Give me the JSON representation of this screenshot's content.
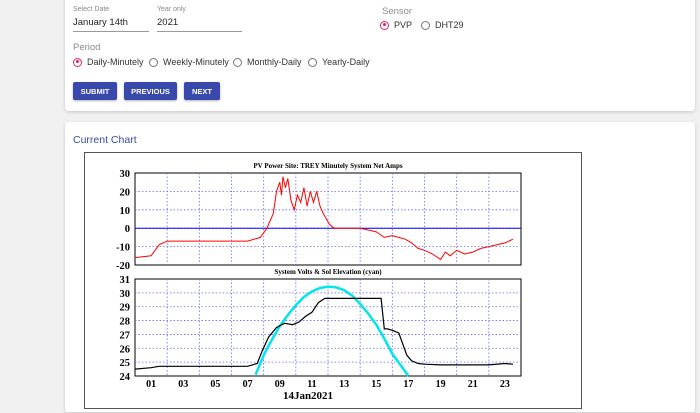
{
  "form": {
    "date_label": "Select Date",
    "date_value": "January 14th",
    "year_label": "Year only",
    "year_value": "2021",
    "sensor_label": "Sensor",
    "sensors": [
      {
        "label": "PVP",
        "checked": true
      },
      {
        "label": "DHT29",
        "checked": false
      }
    ],
    "period_label": "Period",
    "periods": [
      {
        "label": "Daily-Minutely",
        "checked": true
      },
      {
        "label": "Weekly-Minutely",
        "checked": false
      },
      {
        "label": "Monthly-Daily",
        "checked": false
      },
      {
        "label": "Yearly-Daily",
        "checked": false
      }
    ],
    "buttons": {
      "submit": "SUBMIT",
      "previous": "PREVIOUS",
      "next": "NEXT"
    }
  },
  "current_chart_title": "Current Chart",
  "colors": {
    "accent": "#3949ab",
    "radio_selected": "#e0245e",
    "series_top": "#ff0000",
    "zero_line": "#0000ff",
    "series_bottom": "#000000",
    "sun_elevation": "#00e5ee",
    "grid": "#6666ff"
  },
  "chart_data": [
    {
      "type": "line",
      "title": "PV Power Site: TREY          Minutely          System Net Amps",
      "ylim": [
        -20,
        30
      ],
      "yticks": [
        "30",
        "20",
        "10",
        "0",
        "-10",
        "-20"
      ],
      "grid": true,
      "x": [
        0,
        1,
        1.5,
        2,
        3,
        4,
        5,
        6,
        7,
        7.8,
        8.2,
        8.6,
        8.8,
        9.0,
        9.1,
        9.2,
        9.35,
        9.5,
        9.7,
        9.9,
        10.1,
        10.3,
        10.5,
        10.7,
        10.9,
        11.1,
        11.3,
        11.5,
        11.7,
        11.9,
        12.1,
        12.4,
        12.8,
        13.2,
        13.6,
        14,
        14.5,
        15,
        15.5,
        16,
        16.4,
        16.8,
        17.2,
        17.6,
        18,
        18.5,
        19,
        19.3,
        19.6,
        20,
        20.5,
        21,
        21.5,
        22,
        22.5,
        23,
        23.5
      ],
      "series": [
        {
          "values": [
            -16,
            -15,
            -9,
            -7,
            -7,
            -7,
            -7,
            -7,
            -7,
            -5,
            0,
            8,
            20,
            25,
            18,
            28,
            22,
            27,
            15,
            10,
            18,
            14,
            22,
            12,
            20,
            14,
            20,
            12,
            8,
            5,
            2,
            0,
            0,
            0,
            0,
            0,
            -1,
            -2,
            -5,
            -4,
            -5,
            -6,
            -8,
            -11,
            -12,
            -14,
            -17,
            -13,
            -15,
            -12,
            -14,
            -13,
            -11,
            -10,
            -9,
            -8,
            -6
          ]
        }
      ]
    },
    {
      "type": "line",
      "title": "System Volts & Sol Elevation (cyan)",
      "ylim": [
        24,
        31
      ],
      "yticks": [
        "31",
        "30",
        "29",
        "28",
        "27",
        "26",
        "25",
        "24"
      ],
      "xticks": [
        "01",
        "03",
        "05",
        "07",
        "09",
        "11",
        "13",
        "15",
        "17",
        "19",
        "21",
        "23"
      ],
      "xlabel": "14Jan2021",
      "grid": true,
      "x": [
        0,
        1,
        1.5,
        2,
        3,
        4,
        5,
        6,
        7,
        7.6,
        7.9,
        8.3,
        8.8,
        9.3,
        9.8,
        10.2,
        10.6,
        11,
        11.4,
        11.8,
        12.3,
        12.8,
        13.5,
        14,
        14.5,
        15,
        15.3,
        15.5,
        15.7,
        16,
        16.4,
        16.9,
        17.2,
        17.6,
        18,
        19,
        20,
        21,
        22,
        23,
        23.5
      ],
      "series": [
        {
          "name": "System Volts",
          "values": [
            24.5,
            24.6,
            24.7,
            24.7,
            24.7,
            24.7,
            24.7,
            24.7,
            24.7,
            24.9,
            25.8,
            26.8,
            27.5,
            27.8,
            27.7,
            27.9,
            28.3,
            28.6,
            29.3,
            29.6,
            29.6,
            29.6,
            29.6,
            29.6,
            29.6,
            29.6,
            29.6,
            27.4,
            27.4,
            27.3,
            27.1,
            25.5,
            25.1,
            24.9,
            24.85,
            24.8,
            24.8,
            24.8,
            24.8,
            24.9,
            24.85
          ]
        },
        {
          "name": "Sol Elevation",
          "color": "cyan",
          "x": [
            7.5,
            8,
            8.5,
            9,
            9.5,
            10,
            10.5,
            11,
            11.5,
            12,
            12.5,
            13,
            13.5,
            14,
            14.5,
            15,
            15.5,
            16,
            16.5,
            17
          ],
          "values": [
            24.1,
            25.5,
            26.6,
            27.6,
            28.4,
            29.1,
            29.7,
            30.1,
            30.35,
            30.45,
            30.4,
            30.2,
            29.8,
            29.2,
            28.5,
            27.7,
            26.7,
            25.6,
            24.8,
            24.0
          ]
        }
      ]
    }
  ]
}
